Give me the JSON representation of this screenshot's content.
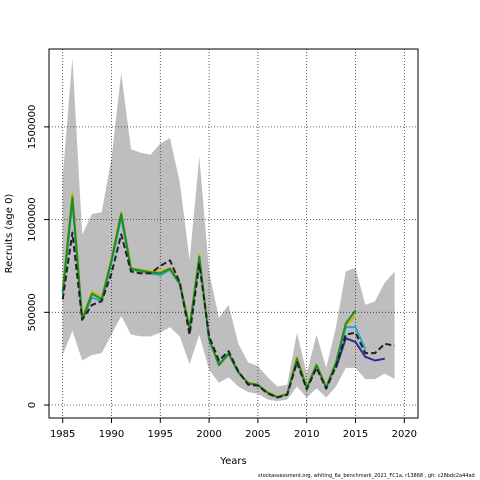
{
  "chart_data": {
    "type": "line",
    "xlabel": "Years",
    "ylabel": "Recruits (age 0)",
    "xlim": [
      1983.6,
      2021.4
    ],
    "ylim": [
      -70000,
      1920000
    ],
    "x_ticks": [
      1985,
      1990,
      1995,
      2000,
      2005,
      2010,
      2015,
      2020
    ],
    "x_tick_labels": [
      "1985",
      "1990",
      "1995",
      "2000",
      "2005",
      "2010",
      "2015",
      "2020"
    ],
    "y_ticks": [
      0,
      500000,
      1000000,
      1500000
    ],
    "y_tick_labels": [
      "0",
      "500000",
      "1000000",
      "1500000"
    ],
    "grid": true,
    "grid_style": "dotted",
    "footnote": "stockassessment.org,  whiting_6a_benchmark_2021_FC1a,  r13868 ,  git: c28bdc2a44ad",
    "band": {
      "x": [
        1985,
        1986,
        1987,
        1988,
        1989,
        1990,
        1991,
        1992,
        1993,
        1994,
        1995,
        1996,
        1997,
        1998,
        1999,
        2000,
        2001,
        2002,
        2003,
        2004,
        2005,
        2006,
        2007,
        2008,
        2009,
        2010,
        2011,
        2012,
        2013,
        2014,
        2015,
        2016,
        2017,
        2018,
        2019
      ],
      "upper": [
        1230000,
        1870000,
        920000,
        1030000,
        1040000,
        1330000,
        1790000,
        1380000,
        1360000,
        1350000,
        1410000,
        1440000,
        1200000,
        780000,
        1340000,
        720000,
        470000,
        540000,
        330000,
        230000,
        210000,
        150000,
        100000,
        110000,
        390000,
        170000,
        380000,
        200000,
        420000,
        720000,
        740000,
        540000,
        560000,
        660000,
        720000
      ],
      "lower": [
        270000,
        400000,
        240000,
        270000,
        280000,
        380000,
        480000,
        380000,
        370000,
        370000,
        390000,
        420000,
        370000,
        220000,
        380000,
        190000,
        120000,
        150000,
        100000,
        70000,
        60000,
        30000,
        20000,
        30000,
        100000,
        40000,
        90000,
        40000,
        100000,
        200000,
        200000,
        140000,
        140000,
        170000,
        140000
      ],
      "color": "#bebebe"
    },
    "series": [
      {
        "color": "#c8b400",
        "x": [
          1985,
          1986,
          1987,
          1988,
          1989,
          1990,
          1991,
          1992,
          1993,
          1994,
          1995,
          1996,
          1997,
          1998,
          1999,
          2000,
          2001,
          2002,
          2003,
          2004,
          2005,
          2006,
          2007,
          2008,
          2009,
          2010,
          2011,
          2012,
          2013,
          2014,
          2015
        ],
        "y": [
          620000,
          1140000,
          470000,
          610000,
          580000,
          790000,
          1040000,
          740000,
          730000,
          720000,
          720000,
          740000,
          660000,
          420000,
          810000,
          360000,
          220000,
          280000,
          180000,
          120000,
          110000,
          70000,
          45000,
          60000,
          260000,
          95000,
          220000,
          100000,
          230000,
          430000,
          480000
        ]
      },
      {
        "color": "#22aacc",
        "x": [
          1985,
          1986,
          1987,
          1988,
          1989,
          1990,
          1991,
          1992,
          1993,
          1994,
          1995,
          1996,
          1997,
          1998,
          1999,
          2000,
          2001,
          2002,
          2003,
          2004,
          2005,
          2006,
          2007,
          2008,
          2009,
          2010,
          2011,
          2012,
          2013,
          2014,
          2015,
          2016
        ],
        "y": [
          600000,
          1090000,
          460000,
          580000,
          560000,
          770000,
          1010000,
          730000,
          720000,
          710000,
          700000,
          730000,
          650000,
          410000,
          790000,
          350000,
          220000,
          280000,
          180000,
          115000,
          110000,
          65000,
          42000,
          58000,
          245000,
          90000,
          210000,
          92000,
          225000,
          420000,
          420000,
          300000
        ]
      },
      {
        "color": "#228b22",
        "x": [
          1985,
          1986,
          1987,
          1988,
          1989,
          1990,
          1991,
          1992,
          1993,
          1994,
          1995,
          1996,
          1997,
          1998,
          1999,
          2000,
          2001,
          2002,
          2003,
          2004,
          2005,
          2006,
          2007,
          2008,
          2009,
          2010,
          2011,
          2012,
          2013,
          2014,
          2015
        ],
        "y": [
          610000,
          1120000,
          460000,
          600000,
          570000,
          780000,
          1030000,
          735000,
          725000,
          715000,
          710000,
          735000,
          655000,
          415000,
          800000,
          355000,
          215000,
          275000,
          175000,
          118000,
          108000,
          66000,
          43000,
          59000,
          250000,
          92000,
          215000,
          95000,
          228000,
          440000,
          510000
        ]
      },
      {
        "color": "#2a2a9a",
        "x": [
          2013,
          2014,
          2015,
          2016,
          2017,
          2018
        ],
        "y": [
          200000,
          360000,
          340000,
          260000,
          240000,
          250000
        ]
      },
      {
        "color": "#222222",
        "dashed": true,
        "x": [
          1985,
          1986,
          1987,
          1988,
          1989,
          1990,
          1991,
          1992,
          1993,
          1994,
          1995,
          1996,
          1997,
          1998,
          1999,
          2000,
          2001,
          2002,
          2003,
          2004,
          2005,
          2006,
          2007,
          2008,
          2009,
          2010,
          2011,
          2012,
          2013,
          2014,
          2015,
          2016,
          2017,
          2018,
          2019
        ],
        "y": [
          570000,
          930000,
          460000,
          540000,
          560000,
          710000,
          920000,
          720000,
          710000,
          710000,
          750000,
          780000,
          660000,
          380000,
          760000,
          370000,
          240000,
          290000,
          180000,
          110000,
          105000,
          62000,
          40000,
          55000,
          230000,
          85000,
          200000,
          88000,
          210000,
          380000,
          390000,
          280000,
          280000,
          330000,
          320000
        ]
      }
    ]
  }
}
